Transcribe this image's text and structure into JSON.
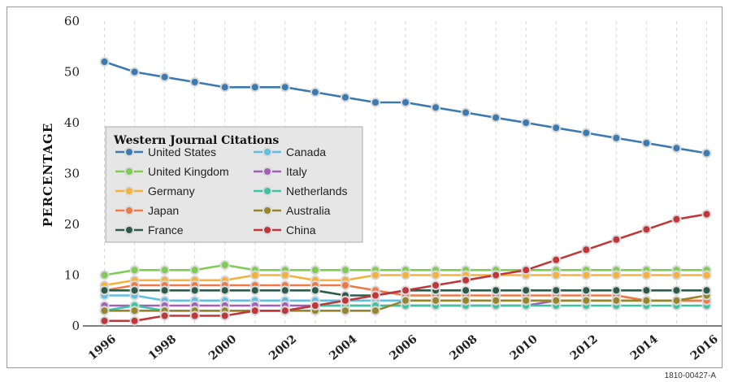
{
  "figure_id": "1810-00427-A",
  "chart_data": {
    "type": "line",
    "ylabel": "PERCENTAGE",
    "xlabel": "",
    "ylim": [
      0,
      60
    ],
    "yticks": [
      0,
      10,
      20,
      30,
      40,
      50,
      60
    ],
    "xticks": [
      1996,
      1998,
      2000,
      2002,
      2004,
      2006,
      2008,
      2010,
      2012,
      2014,
      2016
    ],
    "grid": "vertical dashed",
    "legend": {
      "title": "Western Journal Citations",
      "placement": "center-left"
    },
    "x": [
      1996,
      1997,
      1998,
      1999,
      2000,
      2001,
      2002,
      2003,
      2004,
      2005,
      2006,
      2007,
      2008,
      2009,
      2010,
      2011,
      2012,
      2013,
      2014,
      2015,
      2016
    ],
    "series": [
      {
        "name": "United States",
        "color": "#3d7ab0",
        "values": [
          52,
          50,
          49,
          48,
          47,
          47,
          47,
          46,
          45,
          44,
          44,
          43,
          42,
          41,
          40,
          39,
          38,
          37,
          36,
          35,
          34
        ]
      },
      {
        "name": "Canada",
        "color": "#62bfe3",
        "values": [
          6,
          6,
          5,
          5,
          5,
          5,
          5,
          5,
          5,
          5,
          5,
          5,
          5,
          5,
          5,
          5,
          5,
          5,
          5,
          5,
          5
        ]
      },
      {
        "name": "United Kingdom",
        "color": "#7fcc55",
        "values": [
          10,
          11,
          11,
          11,
          12,
          11,
          11,
          11,
          11,
          11,
          11,
          11,
          11,
          11,
          11,
          11,
          11,
          11,
          11,
          11,
          11
        ]
      },
      {
        "name": "Italy",
        "color": "#a15fb6",
        "values": [
          4,
          4,
          4,
          4,
          4,
          4,
          4,
          4,
          4,
          4,
          4,
          4,
          4,
          4,
          4,
          5,
          5,
          5,
          5,
          5,
          5
        ]
      },
      {
        "name": "Germany",
        "color": "#f4b23c",
        "values": [
          8,
          9,
          9,
          9,
          9,
          10,
          10,
          9,
          9,
          10,
          10,
          10,
          10,
          10,
          10,
          10,
          10,
          10,
          10,
          10,
          10
        ]
      },
      {
        "name": "Netherlands",
        "color": "#3cc3a0",
        "values": [
          3,
          4,
          3,
          3,
          3,
          3,
          3,
          4,
          4,
          4,
          4,
          4,
          4,
          4,
          4,
          4,
          4,
          4,
          4,
          4,
          4
        ]
      },
      {
        "name": "Japan",
        "color": "#ee7a4a",
        "values": [
          7,
          8,
          8,
          8,
          8,
          8,
          8,
          8,
          8,
          7,
          6,
          6,
          6,
          6,
          6,
          6,
          6,
          6,
          5,
          5,
          5
        ]
      },
      {
        "name": "Australia",
        "color": "#96852a",
        "values": [
          3,
          3,
          3,
          3,
          3,
          3,
          3,
          3,
          3,
          3,
          5,
          5,
          5,
          5,
          5,
          5,
          5,
          5,
          5,
          5,
          6
        ]
      },
      {
        "name": "France",
        "color": "#2e5a4a",
        "values": [
          7,
          7,
          7,
          7,
          7,
          7,
          7,
          7,
          6,
          6,
          7,
          7,
          7,
          7,
          7,
          7,
          7,
          7,
          7,
          7,
          7
        ]
      },
      {
        "name": "China",
        "color": "#c0373a",
        "values": [
          1,
          1,
          2,
          2,
          2,
          3,
          3,
          4,
          5,
          6,
          7,
          8,
          9,
          10,
          11,
          13,
          15,
          17,
          19,
          21,
          22
        ]
      }
    ]
  }
}
